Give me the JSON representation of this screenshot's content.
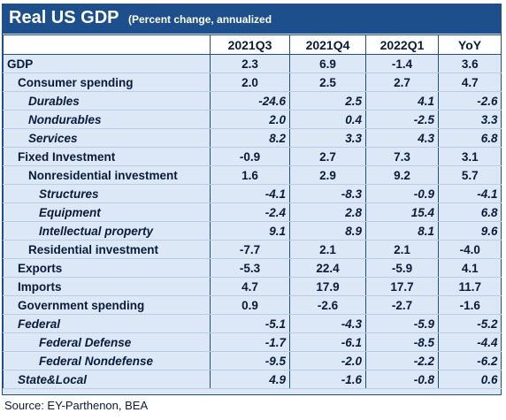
{
  "title": "Real US GDP",
  "subtitle": "(Percent change, annualized",
  "columns": [
    "",
    "2021Q3",
    "2021Q4",
    "2022Q1",
    "YoY"
  ],
  "rows": [
    {
      "label": "GDP",
      "level": 0,
      "italic": false,
      "values": [
        "2.3",
        "6.9",
        "-1.4",
        "3.6"
      ]
    },
    {
      "label": "Consumer spending",
      "level": 1,
      "italic": false,
      "values": [
        "2.0",
        "2.5",
        "2.7",
        "4.7"
      ]
    },
    {
      "label": "Durables",
      "level": 2,
      "italic": true,
      "values": [
        "-24.6",
        "2.5",
        "4.1",
        "-2.6"
      ]
    },
    {
      "label": "Nondurables",
      "level": 2,
      "italic": true,
      "values": [
        "2.0",
        "0.4",
        "-2.5",
        "3.3"
      ]
    },
    {
      "label": "Services",
      "level": 2,
      "italic": true,
      "values": [
        "8.2",
        "3.3",
        "4.3",
        "6.8"
      ]
    },
    {
      "label": "Fixed Investment",
      "level": 1,
      "italic": false,
      "values": [
        "-0.9",
        "2.7",
        "7.3",
        "3.1"
      ]
    },
    {
      "label": "Nonresidential investment",
      "level": 2,
      "italic": false,
      "values": [
        "1.6",
        "2.9",
        "9.2",
        "5.7"
      ]
    },
    {
      "label": "Structures",
      "level": 3,
      "italic": true,
      "values": [
        "-4.1",
        "-8.3",
        "-0.9",
        "-4.1"
      ]
    },
    {
      "label": "Equipment",
      "level": 3,
      "italic": true,
      "values": [
        "-2.4",
        "2.8",
        "15.4",
        "6.8"
      ]
    },
    {
      "label": "Intellectual property",
      "level": 3,
      "italic": true,
      "values": [
        "9.1",
        "8.9",
        "8.1",
        "9.6"
      ]
    },
    {
      "label": "Residential investment",
      "level": 2,
      "italic": false,
      "values": [
        "-7.7",
        "2.1",
        "2.1",
        "-4.0"
      ]
    },
    {
      "label": "Exports",
      "level": 1,
      "italic": false,
      "values": [
        "-5.3",
        "22.4",
        "-5.9",
        "4.1"
      ]
    },
    {
      "label": "Imports",
      "level": 1,
      "italic": false,
      "values": [
        "4.7",
        "17.9",
        "17.7",
        "11.7"
      ]
    },
    {
      "label": "Government spending",
      "level": 1,
      "italic": false,
      "values": [
        "0.9",
        "-2.6",
        "-2.7",
        "-1.6"
      ]
    },
    {
      "label": "Federal",
      "level": 1,
      "italic": true,
      "values": [
        "-5.1",
        "-4.3",
        "-5.9",
        "-5.2"
      ]
    },
    {
      "label": "Federal Defense",
      "level": 3,
      "italic": true,
      "values": [
        "-1.7",
        "-6.1",
        "-8.5",
        "-4.4"
      ]
    },
    {
      "label": "Federal Nondefense",
      "level": 3,
      "italic": true,
      "values": [
        "-9.5",
        "-2.0",
        "-2.2",
        "-6.2"
      ]
    },
    {
      "label": "State&Local",
      "level": 1,
      "italic": true,
      "values": [
        "4.9",
        "-1.6",
        "-0.8",
        "0.6"
      ]
    }
  ],
  "source": "Source: EY-Parthenon, BEA",
  "colors": {
    "header_blue": "#1c4f8c",
    "row_background": "#dce8f6",
    "text": "#0a1a3a"
  }
}
